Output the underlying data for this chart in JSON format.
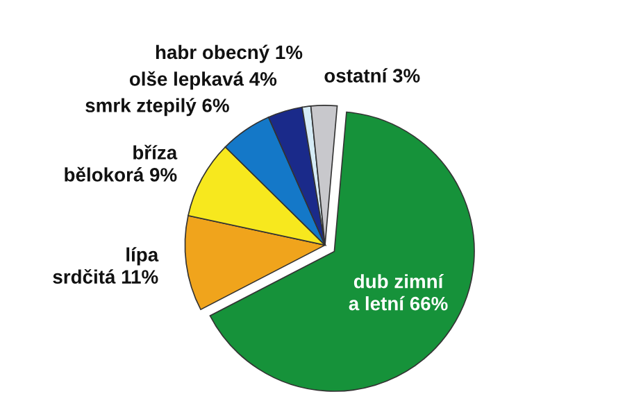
{
  "chart_data": {
    "type": "pie",
    "categories": [
      "dub zimní\na letní",
      "lípa\nsrdčitá",
      "bříza\nbělokorá",
      "smrk ztepilý",
      "olše lepkavá",
      "habr obecný",
      "ostatní"
    ],
    "values": [
      66,
      11,
      9,
      6,
      4,
      1,
      3
    ],
    "value_labels": [
      "66%",
      "11%",
      "9%",
      "6%",
      "4%",
      "1%",
      "3%"
    ],
    "colors": [
      "#16923a",
      "#f0a41c",
      "#f7e81e",
      "#1478c8",
      "#1a2a8a",
      "#d6ecf6",
      "#c8c8cc"
    ]
  }
}
